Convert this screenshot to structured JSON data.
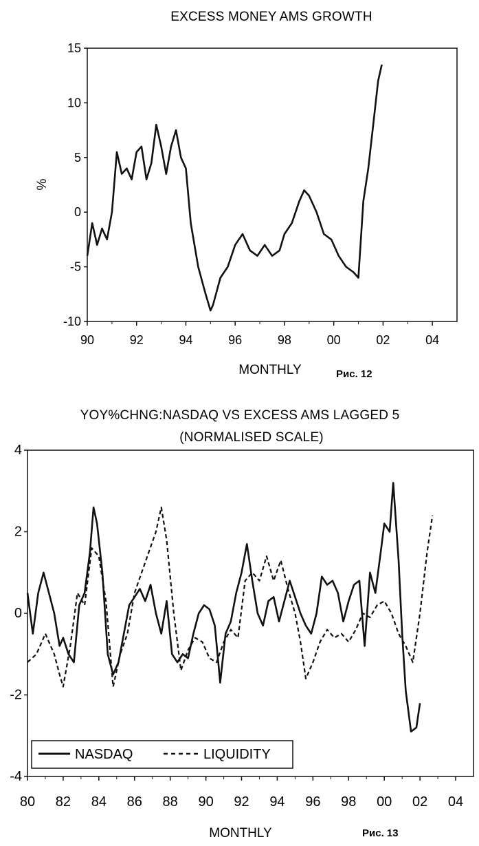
{
  "charts": [
    {
      "type": "line",
      "title": "EXCESS MONEY AMS GROWTH",
      "xlabel": "MONTHLY",
      "ylabel": "%",
      "figure_caption": "Рис. 12",
      "x_tick_labels": [
        "90",
        "92",
        "94",
        "96",
        "98",
        "00",
        "02",
        "04"
      ],
      "y_tick_labels": [
        "15",
        "10",
        "5",
        "0",
        "-5",
        "-10"
      ],
      "y_ticks": [
        15,
        10,
        5,
        0,
        -5,
        -10
      ],
      "xlim": [
        1990,
        2005
      ],
      "ylim": [
        -10,
        15
      ],
      "series": [
        {
          "style": "solid",
          "x": [
            1990.0,
            1990.2,
            1990.4,
            1990.6,
            1990.8,
            1991.0,
            1991.2,
            1991.4,
            1991.6,
            1991.8,
            1992.0,
            1992.2,
            1992.4,
            1992.6,
            1992.8,
            1993.0,
            1993.2,
            1993.4,
            1993.6,
            1993.8,
            1994.0,
            1994.2,
            1994.5,
            1994.8,
            1995.0,
            1995.1,
            1995.4,
            1995.7,
            1996.0,
            1996.3,
            1996.6,
            1996.9,
            1997.2,
            1997.5,
            1997.8,
            1998.0,
            1998.3,
            1998.6,
            1998.8,
            1999.0,
            1999.3,
            1999.6,
            1999.9,
            2000.2,
            2000.5,
            2000.8,
            2001.0,
            2001.2,
            2001.4,
            2001.6,
            2001.8,
            2001.95
          ],
          "y": [
            -4,
            -1,
            -3,
            -1.5,
            -2.5,
            0,
            5.5,
            3.5,
            4,
            3,
            5.5,
            6,
            3,
            4.5,
            8,
            6,
            3.5,
            6,
            7.5,
            5,
            4,
            -1,
            -5,
            -7.5,
            -9,
            -8.5,
            -6,
            -5,
            -3,
            -2,
            -3.5,
            -4,
            -3,
            -4,
            -3.5,
            -2,
            -1,
            1,
            2,
            1.5,
            0,
            -2,
            -2.5,
            -4,
            -5,
            -5.5,
            -6,
            1,
            4,
            8,
            12,
            13.5
          ]
        }
      ]
    },
    {
      "type": "line",
      "title": "YOY%CHNG:NASDAQ VS EXCESS AMS LAGGED 5",
      "subtitle": "(NORMALISED SCALE)",
      "xlabel": "MONTHLY",
      "figure_caption": "Рис. 13",
      "x_tick_labels": [
        "80",
        "82",
        "84",
        "86",
        "88",
        "90",
        "92",
        "94",
        "96",
        "98",
        "00",
        "02",
        "04"
      ],
      "y_tick_labels": [
        "4",
        "2",
        "0",
        "-2",
        "-4"
      ],
      "y_ticks": [
        4,
        2,
        0,
        -2,
        -4
      ],
      "xlim": [
        1980,
        2005
      ],
      "ylim": [
        -4,
        4
      ],
      "legend_position": "bottom-left",
      "series": [
        {
          "name": "NASDAQ",
          "style": "solid",
          "x": [
            1980.0,
            1980.3,
            1980.6,
            1980.9,
            1981.2,
            1981.5,
            1981.8,
            1982.0,
            1982.3,
            1982.6,
            1982.9,
            1983.2,
            1983.5,
            1983.7,
            1983.9,
            1984.2,
            1984.5,
            1984.8,
            1985.1,
            1985.4,
            1985.7,
            1986.0,
            1986.3,
            1986.6,
            1986.9,
            1987.2,
            1987.5,
            1987.8,
            1988.1,
            1988.4,
            1988.7,
            1989.0,
            1989.3,
            1989.6,
            1989.9,
            1990.2,
            1990.5,
            1990.8,
            1991.1,
            1991.4,
            1991.7,
            1992.0,
            1992.3,
            1992.6,
            1992.9,
            1993.2,
            1993.5,
            1993.8,
            1994.1,
            1994.4,
            1994.7,
            1995.0,
            1995.3,
            1995.6,
            1995.9,
            1996.2,
            1996.5,
            1996.8,
            1997.1,
            1997.4,
            1997.7,
            1998.0,
            1998.3,
            1998.6,
            1998.9,
            1999.2,
            1999.5,
            1999.8,
            2000.0,
            2000.3,
            2000.5,
            2000.8,
            2001.0,
            2001.2,
            2001.5,
            2001.8,
            2002.0
          ],
          "y": [
            0.5,
            -0.5,
            0.5,
            1,
            0.5,
            0,
            -0.8,
            -0.6,
            -1,
            -1.2,
            0.2,
            0.5,
            1.5,
            2.6,
            2.2,
            1,
            -1,
            -1.5,
            -1.2,
            -0.5,
            0.2,
            0.4,
            0.6,
            0.3,
            0.7,
            0,
            -0.5,
            0.3,
            -1,
            -1.2,
            -1,
            -1.1,
            -0.5,
            0,
            0.2,
            0.1,
            -0.3,
            -1.7,
            -0.5,
            -0.2,
            0.5,
            1,
            1.7,
            0.8,
            0,
            -0.3,
            0.3,
            0.4,
            -0.2,
            0.3,
            0.8,
            0.4,
            0,
            -0.3,
            -0.5,
            0,
            0.9,
            0.7,
            0.8,
            0.5,
            -0.2,
            0.3,
            0.7,
            0.8,
            -0.8,
            1,
            0.5,
            1.5,
            2.2,
            2,
            3.2,
            1.3,
            -0.5,
            -1.9,
            -2.9,
            -2.8,
            -2.2
          ]
        },
        {
          "name": "LIQUIDITY",
          "style": "dashed",
          "x": [
            1980.0,
            1980.5,
            1981.0,
            1981.5,
            1981.8,
            1982.0,
            1982.4,
            1982.8,
            1983.2,
            1983.6,
            1984.0,
            1984.4,
            1984.8,
            1985.2,
            1985.6,
            1986.0,
            1986.4,
            1986.8,
            1987.2,
            1987.5,
            1987.8,
            1988.2,
            1988.6,
            1989.0,
            1989.4,
            1989.8,
            1990.2,
            1990.6,
            1991.0,
            1991.4,
            1991.8,
            1992.2,
            1992.6,
            1993.0,
            1993.4,
            1993.8,
            1994.2,
            1994.6,
            1995.0,
            1995.3,
            1995.6,
            1996.0,
            1996.4,
            1996.8,
            1997.2,
            1997.6,
            1998.0,
            1998.4,
            1998.8,
            1999.2,
            1999.6,
            2000.0,
            2000.4,
            2000.8,
            2001.2,
            2001.6,
            2002.0,
            2002.4,
            2002.7
          ],
          "y": [
            -1.2,
            -1,
            -0.5,
            -1,
            -1.5,
            -1.8,
            -0.8,
            0.5,
            0.2,
            1.6,
            1.4,
            0.3,
            -1.8,
            -1,
            -0.5,
            0.5,
            1,
            1.5,
            2,
            2.6,
            1.8,
            0,
            -1.4,
            -0.9,
            -0.6,
            -0.7,
            -1.1,
            -1.2,
            -0.7,
            -0.4,
            -0.6,
            0.8,
            1,
            0.8,
            1.4,
            0.8,
            1.3,
            0.6,
            0,
            -0.7,
            -1.6,
            -1.2,
            -0.7,
            -0.4,
            -0.6,
            -0.5,
            -0.7,
            -0.4,
            0,
            -0.1,
            0.2,
            0.3,
            0,
            -0.5,
            -0.8,
            -1.2,
            0,
            1.5,
            2.4
          ]
        }
      ]
    }
  ]
}
